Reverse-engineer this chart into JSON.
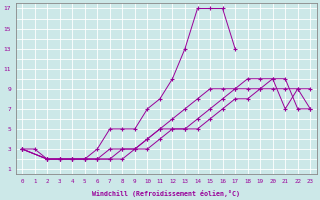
{
  "xlabel": "Windchill (Refroidissement éolien,°C)",
  "background_color": "#cce8e8",
  "grid_color": "#ffffff",
  "line_color": "#990099",
  "xlim": [
    -0.5,
    23.5
  ],
  "ylim": [
    0.5,
    17.5
  ],
  "yticks": [
    1,
    3,
    5,
    7,
    9,
    11,
    13,
    15,
    17
  ],
  "lines": [
    {
      "x": [
        0,
        1,
        2,
        3,
        4,
        5,
        6,
        7,
        8,
        9,
        10,
        11,
        12,
        13,
        14,
        15,
        16,
        17
      ],
      "y": [
        3,
        3,
        2,
        2,
        2,
        2,
        3,
        5,
        5,
        5,
        7,
        8,
        10,
        13,
        17,
        17,
        17,
        13
      ]
    },
    {
      "x": [
        0,
        2,
        3,
        4,
        5,
        6,
        7,
        8,
        9,
        10,
        11,
        12,
        13,
        14,
        15,
        16,
        17,
        18,
        19,
        20,
        21,
        22,
        23
      ],
      "y": [
        3,
        2,
        2,
        2,
        2,
        2,
        3,
        3,
        3,
        4,
        5,
        6,
        7,
        8,
        9,
        9,
        9,
        9,
        9,
        9,
        9,
        9,
        7
      ]
    },
    {
      "x": [
        0,
        2,
        3,
        4,
        5,
        6,
        7,
        8,
        9,
        10,
        11,
        12,
        13,
        14,
        15,
        16,
        17,
        18,
        19,
        20,
        21,
        22,
        23
      ],
      "y": [
        3,
        2,
        2,
        2,
        2,
        2,
        2,
        3,
        3,
        4,
        5,
        5,
        5,
        6,
        7,
        8,
        9,
        10,
        10,
        10,
        7,
        9,
        9
      ]
    },
    {
      "x": [
        0,
        2,
        3,
        4,
        5,
        6,
        7,
        8,
        9,
        10,
        11,
        12,
        13,
        14,
        15,
        16,
        17,
        18,
        19,
        20,
        21,
        22,
        23
      ],
      "y": [
        3,
        2,
        2,
        2,
        2,
        2,
        2,
        2,
        3,
        3,
        4,
        5,
        5,
        5,
        6,
        7,
        8,
        8,
        9,
        10,
        10,
        7,
        7
      ]
    }
  ]
}
